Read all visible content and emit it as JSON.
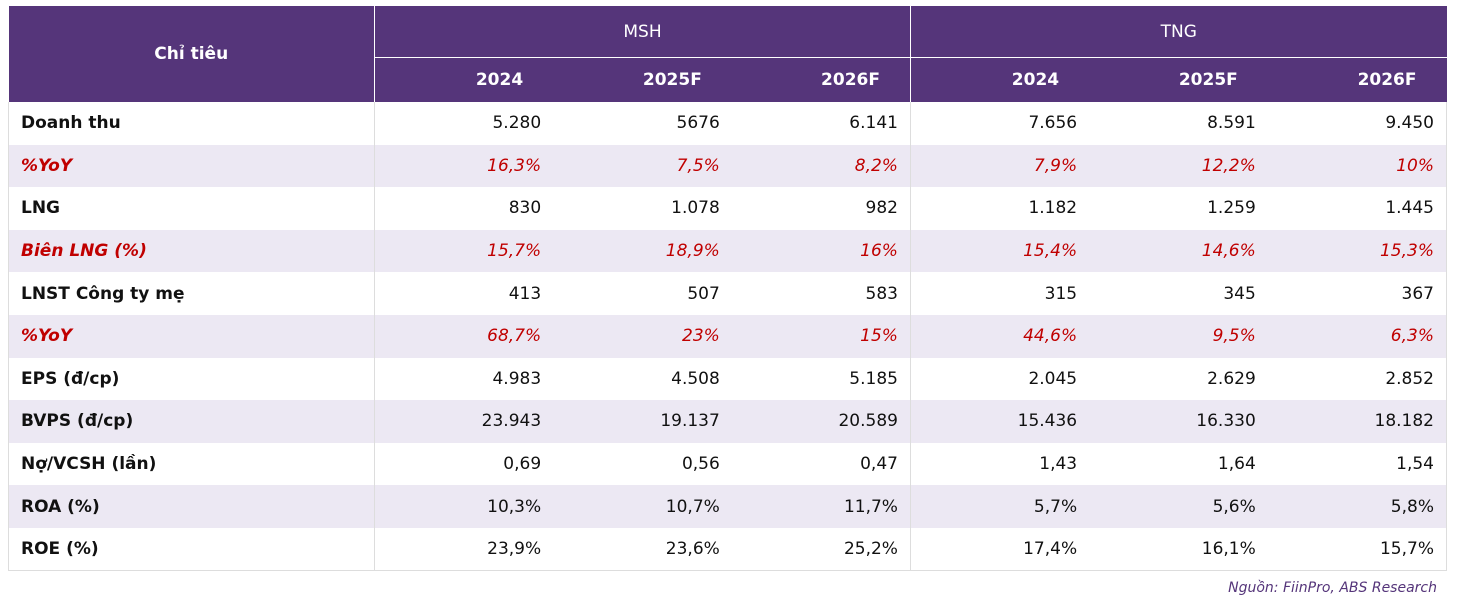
{
  "table": {
    "corner": "Chỉ tiêu",
    "groups": [
      {
        "name": "MSH",
        "years": [
          "2024",
          "2025F",
          "2026F"
        ]
      },
      {
        "name": "TNG",
        "years": [
          "2024",
          "2025F",
          "2026F"
        ]
      }
    ],
    "rows": [
      {
        "label": "Doanh thu",
        "values": [
          "5.280",
          "5676",
          "6.141",
          "7.656",
          "8.591",
          "9.450"
        ]
      },
      {
        "label": "%YoY",
        "color": "#c00000",
        "values": [
          "16,3%",
          "7,5%",
          "8,2%",
          "7,9%",
          "12,2%",
          "10%"
        ]
      },
      {
        "label": "LNG",
        "values": [
          "830",
          "1.078",
          "982",
          "1.182",
          "1.259",
          "1.445"
        ]
      },
      {
        "label": "Biên LNG (%)",
        "color": "#c00000",
        "values": [
          "15,7%",
          "18,9%",
          "16%",
          "15,4%",
          "14,6%",
          "15,3%"
        ]
      },
      {
        "label": "LNST Công ty mẹ",
        "values": [
          "413",
          "507",
          "583",
          "315",
          "345",
          "367"
        ]
      },
      {
        "label": "%YoY",
        "color": "#c00000",
        "values": [
          "68,7%",
          "23%",
          "15%",
          "44,6%",
          "9,5%",
          "6,3%"
        ]
      },
      {
        "label": "EPS (đ/cp)",
        "values": [
          "4.983",
          "4.508",
          "5.185",
          "2.045",
          "2.629",
          "2.852"
        ]
      },
      {
        "label": "BVPS (đ/cp)",
        "values": [
          "23.943",
          "19.137",
          "20.589",
          "15.436",
          "16.330",
          "18.182"
        ]
      },
      {
        "label": "Nợ/VCSH (lần)",
        "values": [
          "0,69",
          "0,56",
          "0,47",
          "1,43",
          "1,64",
          "1,54"
        ]
      },
      {
        "label": "ROA (%)",
        "values": [
          "10,3%",
          "10,7%",
          "11,7%",
          "5,7%",
          "5,6%",
          "5,8%"
        ]
      },
      {
        "label": "ROE (%)",
        "values": [
          "23,9%",
          "23,6%",
          "25,2%",
          "17,4%",
          "16,1%",
          "15,7%"
        ]
      }
    ]
  },
  "source": "Nguồn: FiinPro, ABS Research"
}
